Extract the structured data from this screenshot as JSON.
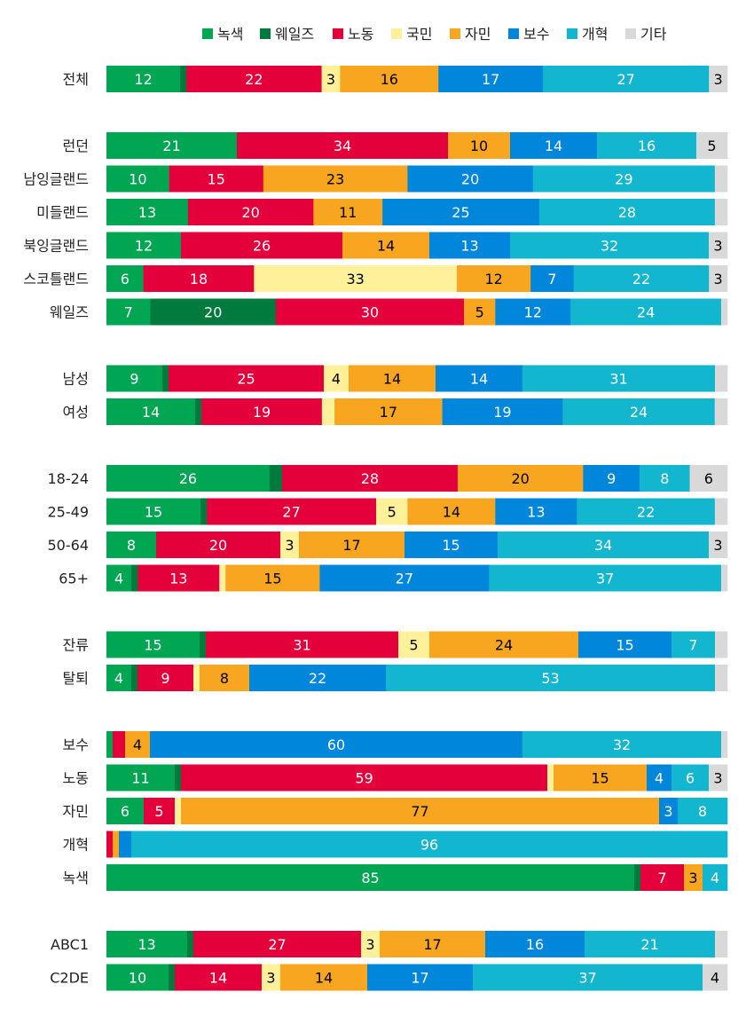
{
  "chart_data": {
    "type": "bar",
    "orientation": "horizontal",
    "stacked": true,
    "legend_position": "top",
    "series": [
      {
        "key": "green",
        "name": "녹색",
        "color": "#00a651",
        "text_color": "#ffffff"
      },
      {
        "key": "plaid",
        "name": "웨일즈",
        "color": "#007a3d",
        "text_color": "#ffffff"
      },
      {
        "key": "labour",
        "name": "노동",
        "color": "#e4003b",
        "text_color": "#ffffff"
      },
      {
        "key": "snp",
        "name": "국민",
        "color": "#fff19a",
        "text_color": "#000000"
      },
      {
        "key": "libdem",
        "name": "자민",
        "color": "#f8a51f",
        "text_color": "#000000"
      },
      {
        "key": "con",
        "name": "보수",
        "color": "#0087dc",
        "text_color": "#ffffff"
      },
      {
        "key": "reform",
        "name": "개혁",
        "color": "#12b6cf",
        "text_color": "#ffffff"
      },
      {
        "key": "other",
        "name": "기타",
        "color": "#d9d9d9",
        "text_color": "#000000"
      }
    ],
    "groups": [
      {
        "rows": [
          {
            "label": "전체",
            "values": [
              12,
              1,
              22,
              3,
              16,
              17,
              27,
              3
            ]
          }
        ]
      },
      {
        "rows": [
          {
            "label": "런던",
            "values": [
              21,
              0,
              34,
              0,
              10,
              14,
              16,
              5
            ]
          },
          {
            "label": "남잉글랜드",
            "values": [
              10,
              0,
              15,
              0,
              23,
              20,
              29,
              2
            ]
          },
          {
            "label": "미들랜드",
            "values": [
              13,
              0,
              20,
              0,
              11,
              25,
              28,
              2
            ]
          },
          {
            "label": "북잉글랜드",
            "values": [
              12,
              0,
              26,
              0,
              14,
              13,
              32,
              3
            ]
          },
          {
            "label": "스코틀랜드",
            "values": [
              6,
              0,
              18,
              33,
              12,
              7,
              22,
              3
            ]
          },
          {
            "label": "웨일즈",
            "values": [
              7,
              20,
              30,
              0,
              5,
              12,
              24,
              1
            ]
          }
        ]
      },
      {
        "rows": [
          {
            "label": "남성",
            "values": [
              9,
              1,
              25,
              4,
              14,
              14,
              31,
              2
            ]
          },
          {
            "label": "여성",
            "values": [
              14,
              1,
              19,
              2,
              17,
              19,
              24,
              2
            ]
          }
        ]
      },
      {
        "rows": [
          {
            "label": "18-24",
            "values": [
              26,
              2,
              28,
              0,
              20,
              9,
              8,
              6
            ]
          },
          {
            "label": "25-49",
            "values": [
              15,
              1,
              27,
              5,
              14,
              13,
              22,
              2
            ]
          },
          {
            "label": "50-64",
            "values": [
              8,
              0,
              20,
              3,
              17,
              15,
              34,
              3
            ]
          },
          {
            "label": "65+",
            "values": [
              4,
              1,
              13,
              1,
              15,
              27,
              37,
              1
            ]
          }
        ]
      },
      {
        "rows": [
          {
            "label": "잔류",
            "values": [
              15,
              1,
              31,
              5,
              24,
              15,
              7,
              2
            ]
          },
          {
            "label": "탈퇴",
            "values": [
              4,
              1,
              9,
              1,
              8,
              22,
              53,
              2
            ]
          }
        ]
      },
      {
        "rows": [
          {
            "label": "보수",
            "values": [
              1,
              0,
              2,
              0,
              4,
              60,
              32,
              1
            ]
          },
          {
            "label": "노동",
            "values": [
              11,
              1,
              59,
              1,
              15,
              4,
              6,
              3
            ]
          },
          {
            "label": "자민",
            "values": [
              6,
              0,
              5,
              1,
              77,
              3,
              8,
              0
            ]
          },
          {
            "label": "개혁",
            "values": [
              0,
              0,
              1,
              0,
              1,
              2,
              96,
              0
            ]
          },
          {
            "label": "녹색",
            "values": [
              85,
              1,
              7,
              0,
              3,
              0,
              4,
              0
            ]
          }
        ]
      },
      {
        "rows": [
          {
            "label": "ABC1",
            "values": [
              13,
              1,
              27,
              3,
              17,
              16,
              21,
              2
            ]
          },
          {
            "label": "C2DE",
            "values": [
              10,
              1,
              14,
              3,
              14,
              17,
              37,
              4
            ]
          }
        ]
      }
    ],
    "hidden_label_values": [
      {
        "label": "웨일즈",
        "series": "other"
      }
    ],
    "min_label_value": 3,
    "xlim": [
      0,
      100
    ]
  }
}
